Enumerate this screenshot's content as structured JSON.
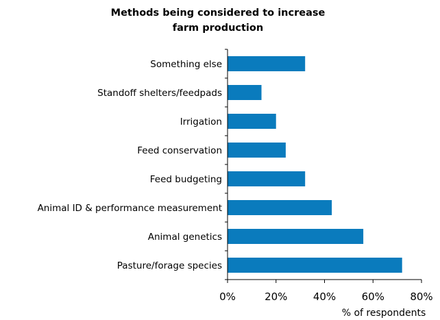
{
  "chart_data": {
    "type": "bar",
    "orientation": "horizontal",
    "title": "Methods being considered to increase farm production",
    "title_lines": [
      "Methods being considered to increase",
      "farm production"
    ],
    "xlabel": "% of respondents",
    "ylabel": "",
    "categories": [
      "Something else",
      "Standoff shelters/feedpads",
      "Irrigation",
      "Feed conservation",
      "Feed budgeting",
      "Animal ID & performance measurement",
      "Animal genetics",
      "Pasture/forage species"
    ],
    "values": [
      32,
      14,
      20,
      24,
      32,
      43,
      56,
      72
    ],
    "xlim": [
      0,
      80
    ],
    "x_ticks": [
      0,
      20,
      40,
      60,
      80
    ],
    "x_tick_labels": [
      "0%",
      "20%",
      "40%",
      "60%",
      "80%"
    ],
    "bar_color": "#0A7BBD",
    "grid": false,
    "legend": "none"
  }
}
